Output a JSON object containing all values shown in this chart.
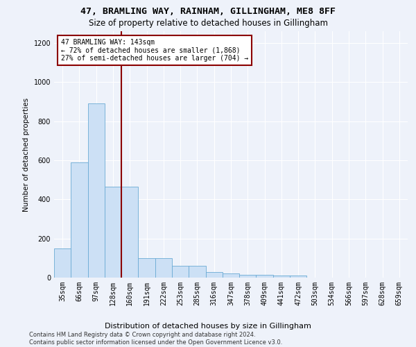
{
  "title": "47, BRAMLING WAY, RAINHAM, GILLINGHAM, ME8 8FF",
  "subtitle": "Size of property relative to detached houses in Gillingham",
  "xlabel": "Distribution of detached houses by size in Gillingham",
  "ylabel": "Number of detached properties",
  "categories": [
    "35sqm",
    "66sqm",
    "97sqm",
    "128sqm",
    "160sqm",
    "191sqm",
    "222sqm",
    "253sqm",
    "285sqm",
    "316sqm",
    "347sqm",
    "378sqm",
    "409sqm",
    "441sqm",
    "472sqm",
    "503sqm",
    "534sqm",
    "566sqm",
    "597sqm",
    "628sqm",
    "659sqm"
  ],
  "values": [
    150,
    590,
    890,
    465,
    465,
    100,
    100,
    60,
    60,
    30,
    20,
    15,
    15,
    10,
    10,
    0,
    0,
    0,
    0,
    0,
    0
  ],
  "bar_color": "#cce0f5",
  "bar_edge_color": "#6aaad4",
  "vline_x": 3.5,
  "vline_color": "#8b0000",
  "annotation_text": "47 BRAMLING WAY: 143sqm\n← 72% of detached houses are smaller (1,868)\n27% of semi-detached houses are larger (704) →",
  "annotation_box_color": "#ffffff",
  "annotation_box_edge": "#8b0000",
  "ylim": [
    0,
    1260
  ],
  "yticks": [
    0,
    200,
    400,
    600,
    800,
    1000,
    1200
  ],
  "footer": "Contains HM Land Registry data © Crown copyright and database right 2024.\nContains public sector information licensed under the Open Government Licence v3.0.",
  "bg_color": "#eef2fa",
  "grid_color": "#ffffff",
  "title_fontsize": 9.5,
  "subtitle_fontsize": 8.5,
  "ylabel_fontsize": 7.5,
  "xlabel_fontsize": 8,
  "tick_fontsize": 7,
  "annotation_fontsize": 7,
  "footer_fontsize": 6
}
